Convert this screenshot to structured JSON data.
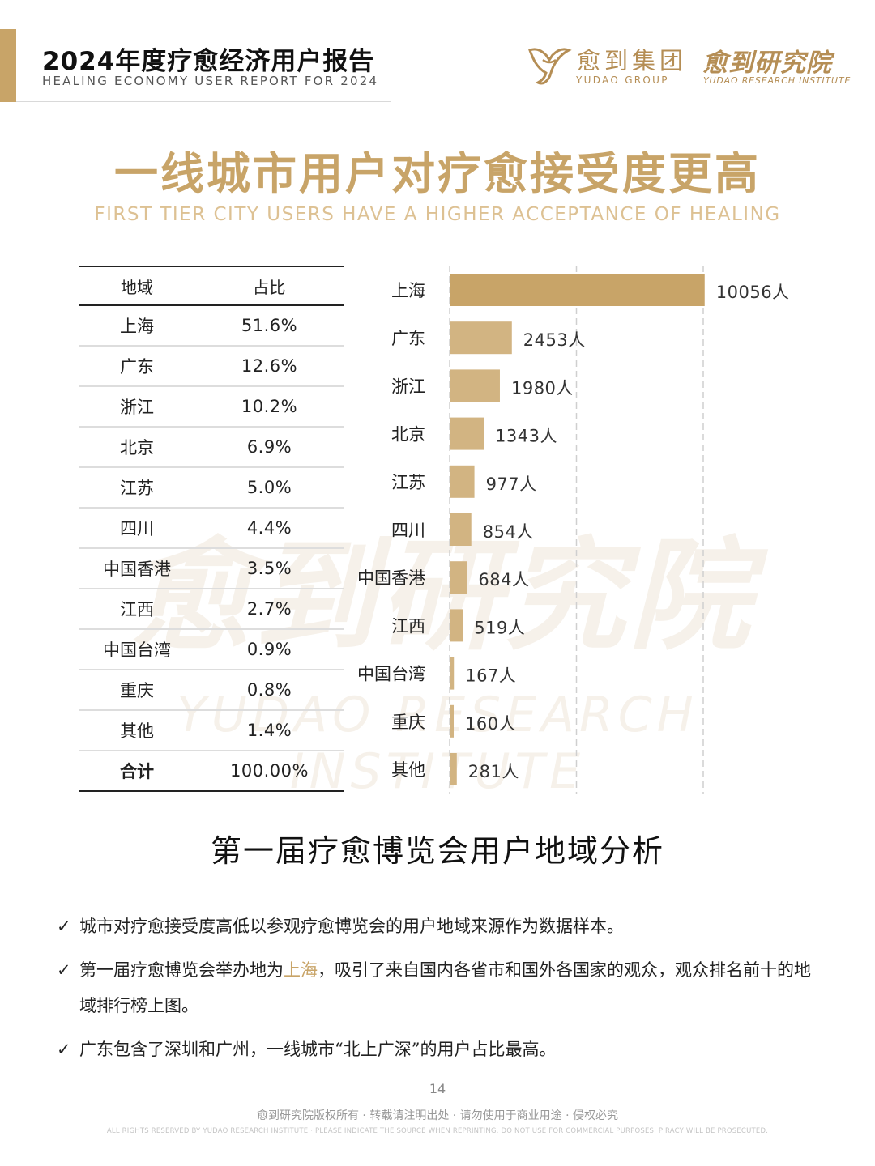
{
  "header": {
    "report_title": "2024年度疗愈经济用户报告",
    "report_subtitle": "HEALING ECONOMY USER REPORT FOR 2024",
    "group_name_cn": "愈到集团",
    "group_name_en": "YUDAO GROUP",
    "institute_name_cn": "愈到研究院",
    "institute_name_en": "YUDAO RESEARCH INSTITUTE",
    "brand_color": "#c8a468",
    "logo_icon": "yudao-logo-icon"
  },
  "main": {
    "title": "一线城市用户对疗愈接受度更高",
    "subtitle": "FIRST TIER CITY USERS HAVE A HIGHER ACCEPTANCE OF HEALING"
  },
  "watermark": {
    "cn": "愈到研究院",
    "en": "YUDAO RESEARCH INSTITUTE"
  },
  "table": {
    "headers": {
      "region": "地域",
      "share": "占比"
    },
    "rows": [
      {
        "region": "上海",
        "share": "51.6%"
      },
      {
        "region": "广东",
        "share": "12.6%"
      },
      {
        "region": "浙江",
        "share": "10.2%"
      },
      {
        "region": "北京",
        "share": "6.9%"
      },
      {
        "region": "江苏",
        "share": "5.0%"
      },
      {
        "region": "四川",
        "share": "4.4%"
      },
      {
        "region": "中国香港",
        "share": "3.5%"
      },
      {
        "region": "江西",
        "share": "2.7%"
      },
      {
        "region": "中国台湾",
        "share": "0.9%"
      },
      {
        "region": "重庆",
        "share": "0.8%"
      },
      {
        "region": "其他",
        "share": "1.4%"
      }
    ],
    "total": {
      "region": "合计",
      "share": "100.00%"
    }
  },
  "chart_data": {
    "type": "bar",
    "orientation": "horizontal",
    "categories": [
      "上海",
      "广东",
      "浙江",
      "北京",
      "江苏",
      "四川",
      "中国香港",
      "江西",
      "中国台湾",
      "重庆",
      "其他"
    ],
    "values": [
      10056,
      2453,
      1980,
      1343,
      977,
      854,
      684,
      519,
      167,
      160,
      281
    ],
    "value_suffix": "人",
    "xlim": [
      0,
      10000
    ],
    "gridlines": [
      5000,
      10000
    ],
    "bar_color": "#d2b482",
    "top_bar_color": "#c8a468"
  },
  "section": {
    "title": "第一届疗愈博览会用户地域分析"
  },
  "bullets": {
    "check_icon": "check-icon",
    "b1": "城市对疗愈接受度高低以参观疗愈博览会的用户地域来源作为数据样本。",
    "b2_prefix": "第一届疗愈博览会举办地为",
    "b2_highlight": "上海",
    "b2_suffix": "，吸引了来自国内各省市和国外各国家的观众，观众排名前十的地域排行榜上图。",
    "b3": "广东包含了深圳和广州，一线城市“北上广深”的用户占比最高。"
  },
  "footer": {
    "page_number": "14",
    "copyright_cn": "愈到研究院版权所有 · 转载请注明出处 · 请勿使用于商业用途 · 侵权必究",
    "copyright_en": "ALL RIGHTS RESERVED BY YUDAO RESEARCH INSTITUTE · PLEASE INDICATE THE SOURCE WHEN REPRINTING. DO NOT USE FOR COMMERCIAL PURPOSES. PIRACY WILL BE PROSECUTED."
  }
}
